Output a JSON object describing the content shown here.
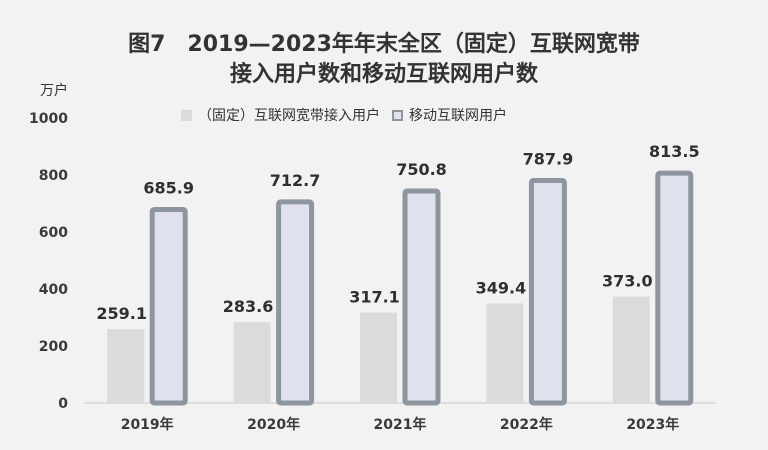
{
  "title_line1": "图7　2019—2023年年末全区（固定）互联网宽带",
  "title_line2": "接入用户数和移动互联网用户数",
  "unit_label": "万户",
  "chart_data": {
    "type": "bar",
    "title": "图7　2019—2023年年末全区（固定）互联网宽带接入用户数和移动互联网用户数",
    "ylabel": "万户",
    "ylim": [
      0,
      1000
    ],
    "yticks": [
      "0",
      "200",
      "400",
      "600",
      "800",
      "1000"
    ],
    "categories": [
      "2019年",
      "2020年",
      "2021年",
      "2022年",
      "2023年"
    ],
    "series": [
      {
        "name": "（固定）互联网宽带接入用户",
        "values": [
          259.1,
          283.6,
          317.1,
          349.4,
          373.0
        ],
        "labels": [
          "259.1",
          "283.6",
          "317.1",
          "349.4",
          "373.0"
        ],
        "color": "#dcdadb"
      },
      {
        "name": "移动互联网用户",
        "values": [
          685.9,
          712.7,
          750.8,
          787.9,
          813.5
        ],
        "labels": [
          "685.9",
          "712.7",
          "750.8",
          "787.9",
          "813.5"
        ],
        "color": "#dfe2ec",
        "border_color": "#8d959f"
      }
    ],
    "grid": false,
    "legend_position": "top"
  }
}
